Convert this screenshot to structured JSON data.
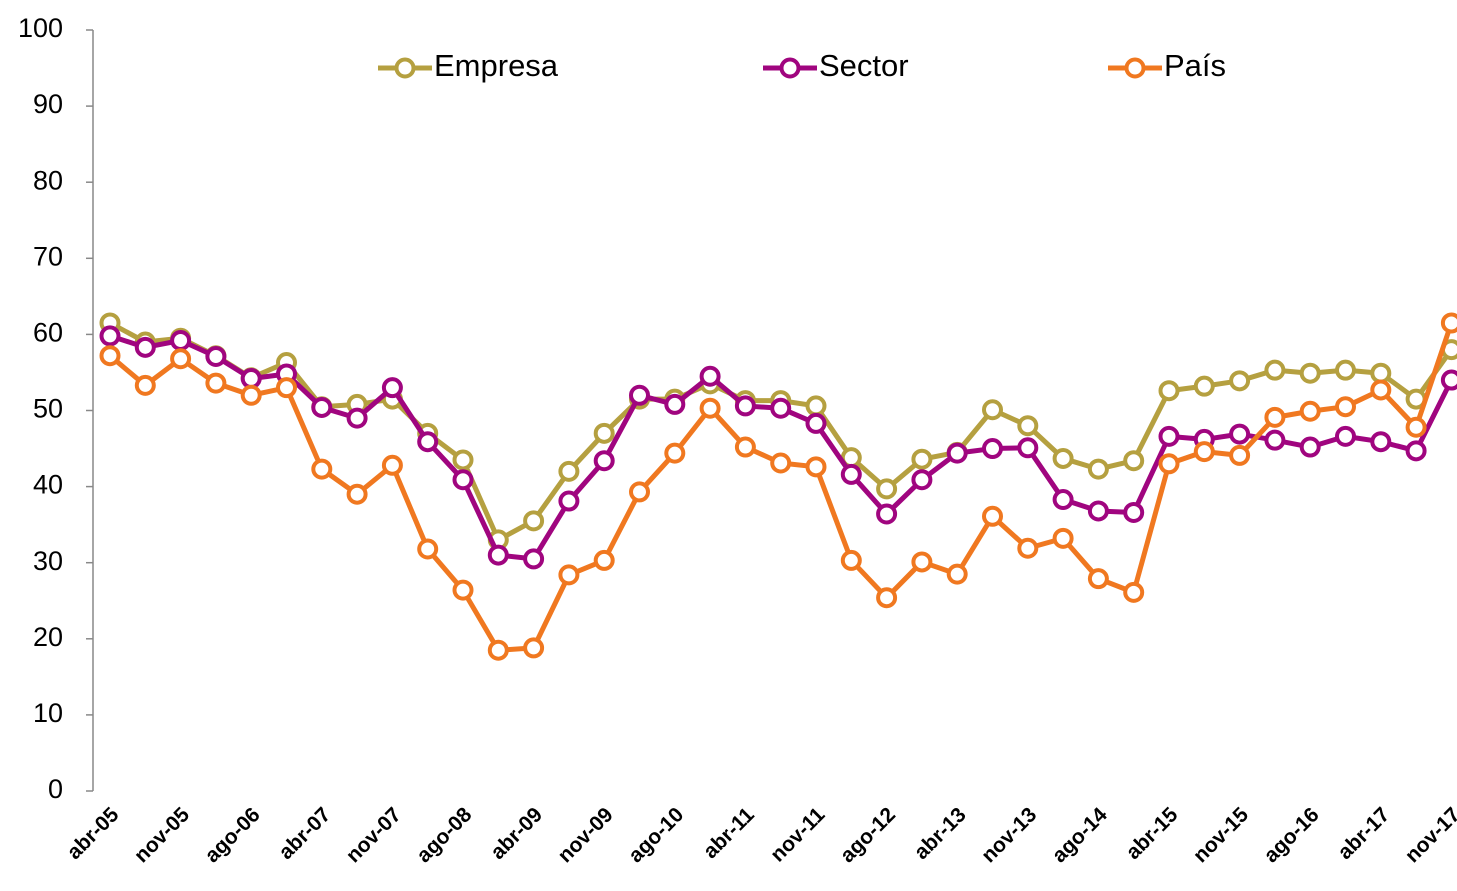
{
  "chart_data": {
    "type": "line",
    "categories": [
      "abr-05",
      null,
      "nov-05",
      null,
      "ago-06",
      null,
      "abr-07",
      null,
      "nov-07",
      null,
      "ago-08",
      null,
      "abr-09",
      null,
      "nov-09",
      null,
      "ago-10",
      null,
      "abr-11",
      null,
      "nov-11",
      null,
      "ago-12",
      null,
      "abr-13",
      null,
      "nov-13",
      null,
      "ago-14",
      null,
      "abr-15",
      null,
      "nov-15",
      null,
      "ago-16",
      null,
      "abr-17",
      null,
      "nov-17"
    ],
    "series": [
      {
        "name": "Empresa",
        "color": "#b5a040",
        "values": [
          61.5,
          59,
          59.5,
          57.2,
          54.3,
          56.3,
          50.5,
          50.8,
          51.5,
          47,
          43.5,
          33,
          35.5,
          42,
          47,
          51.5,
          51.5,
          53.5,
          51.3,
          51.3,
          50.6,
          43.8,
          39.7,
          43.6,
          44.5,
          50.1,
          48,
          43.7,
          42.3,
          43.4,
          52.6,
          53.2,
          53.9,
          55.3,
          54.9,
          55.3,
          54.9,
          51.5,
          58
        ]
      },
      {
        "name": "Sector",
        "color": "#a0057f",
        "values": [
          59.8,
          58.3,
          59.2,
          57.1,
          54.2,
          54.8,
          50.4,
          49,
          53,
          45.9,
          40.9,
          31,
          30.5,
          38.1,
          43.4,
          52,
          50.8,
          54.5,
          50.6,
          50.3,
          48.3,
          41.6,
          36.4,
          40.9,
          44.4,
          45,
          45.1,
          38.3,
          36.8,
          36.6,
          46.6,
          46.2,
          46.9,
          46.1,
          45.2,
          46.6,
          45.9,
          44.7,
          54
        ]
      },
      {
        "name": "País",
        "color": "#f07820",
        "values": [
          57.2,
          53.3,
          56.8,
          53.6,
          52,
          53,
          42.3,
          39,
          42.8,
          31.8,
          26.4,
          18.5,
          18.8,
          28.4,
          30.3,
          39.3,
          44.4,
          50.3,
          45.2,
          43.1,
          42.6,
          30.3,
          25.4,
          30.1,
          28.5,
          36.1,
          31.9,
          33.2,
          27.9,
          26.1,
          43,
          44.6,
          44.1,
          49.1,
          49.9,
          50.5,
          52.7,
          47.8,
          61.5
        ]
      }
    ],
    "ylim": [
      0,
      100
    ],
    "yticks": [
      0,
      10,
      20,
      30,
      40,
      50,
      60,
      70,
      80,
      90,
      100
    ]
  }
}
